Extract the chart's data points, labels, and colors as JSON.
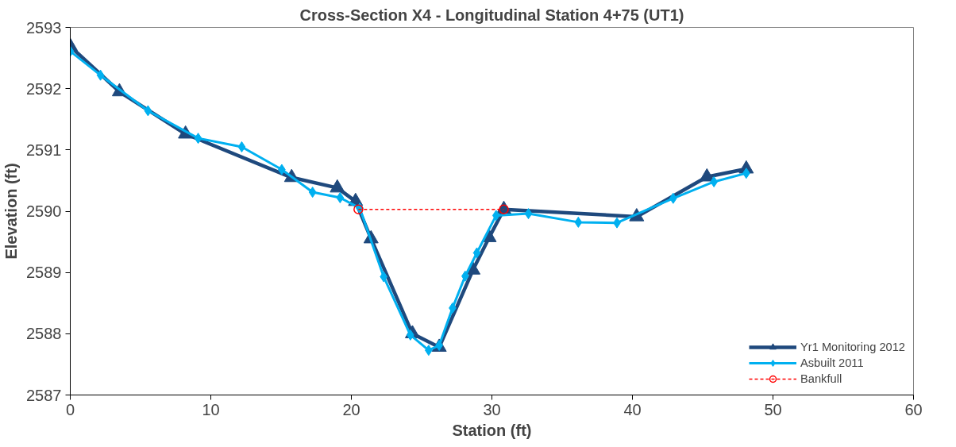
{
  "chart_data": {
    "type": "line",
    "title": "Cross-Section X4 - Longitudinal Station 4+75 (UT1)",
    "xlabel": "Station (ft)",
    "ylabel": "Elevation (ft)",
    "xlim": [
      0,
      60
    ],
    "xticks": [
      0,
      10,
      20,
      30,
      40,
      50,
      60
    ],
    "ylim": [
      2587,
      2593
    ],
    "yticks": [
      2587,
      2588,
      2589,
      2590,
      2591,
      2592,
      2593
    ],
    "grid": false,
    "legend": "bottom right",
    "series": [
      {
        "name": "Yr1 Monitoring 2012",
        "color": "#1f497d",
        "marker": "triangle",
        "line_style": "solid",
        "x": [
          0,
          3.5,
          8.2,
          15.75,
          19.0,
          20.3,
          21.4,
          24.35,
          26.25,
          28.65,
          29.8,
          30.85,
          40.3,
          45.3,
          48.1
        ],
        "values": [
          2592.69,
          2591.95,
          2591.26,
          2590.55,
          2590.38,
          2590.16,
          2589.55,
          2588.0,
          2587.78,
          2589.04,
          2589.57,
          2590.03,
          2589.91,
          2590.56,
          2590.69
        ]
      },
      {
        "name": "Asbuilt 2011",
        "color": "#00b0f0",
        "marker": "diamond",
        "line_style": "solid",
        "x": [
          0,
          2.15,
          5.53,
          9.1,
          12.2,
          15.05,
          17.24,
          19.2,
          20.6,
          22.3,
          24.2,
          25.5,
          26.25,
          27.2,
          28.1,
          28.93,
          30.3,
          32.6,
          36.15,
          38.9,
          42.9,
          45.8,
          48.1
        ],
        "values": [
          2592.61,
          2592.22,
          2591.64,
          2591.19,
          2591.05,
          2590.68,
          2590.31,
          2590.22,
          2590.05,
          2588.93,
          2587.98,
          2587.73,
          2587.81,
          2588.42,
          2588.94,
          2589.32,
          2589.93,
          2589.96,
          2589.82,
          2589.81,
          2590.21,
          2590.48,
          2590.62
        ]
      },
      {
        "name": "Bankfull",
        "color": "#ff0000",
        "marker": "circle",
        "line_style": "dashed",
        "x": [
          20.5,
          30.85
        ],
        "values": [
          2590.03,
          2590.03
        ]
      }
    ]
  }
}
